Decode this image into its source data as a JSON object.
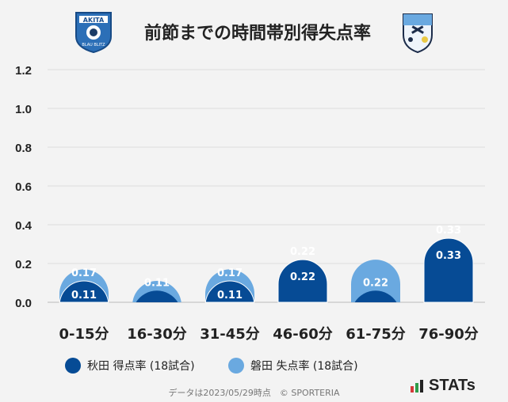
{
  "header": {
    "title": "前節までの時間帯別得失点率",
    "left_logo_text": "AKITA",
    "left_logo_sub": "BLAU BLITZ"
  },
  "chart_data": {
    "type": "bar",
    "categories": [
      "0-15分",
      "16-30分",
      "31-45分",
      "46-60分",
      "61-75分",
      "76-90分"
    ],
    "series": [
      {
        "name": "秋田 得点率 (18試合)",
        "values": [
          0.11,
          0.06,
          0.11,
          0.22,
          0.06,
          0.33
        ],
        "labels": [
          "0.11",
          "",
          "0.11",
          "0.22",
          "",
          "0.33"
        ],
        "color": "#064b95"
      },
      {
        "name": "磐田 失点率 (18試合)",
        "values": [
          0.17,
          0.11,
          0.17,
          0.22,
          0.22,
          0.33
        ],
        "labels": [
          "0.17",
          "0.11",
          "0.17",
          "0.22",
          "0.22",
          "0.33"
        ],
        "color": "#6aa9e0"
      }
    ],
    "yticks": [
      "0.0",
      "0.2",
      "0.4",
      "0.6",
      "0.8",
      "1.0",
      "1.2"
    ],
    "ylim": [
      0,
      1.2
    ],
    "grid": true,
    "legend": "bottom"
  },
  "footer": {
    "note": "データは2023/05/29時点　© SPORTERIA",
    "brand": "STATs"
  }
}
